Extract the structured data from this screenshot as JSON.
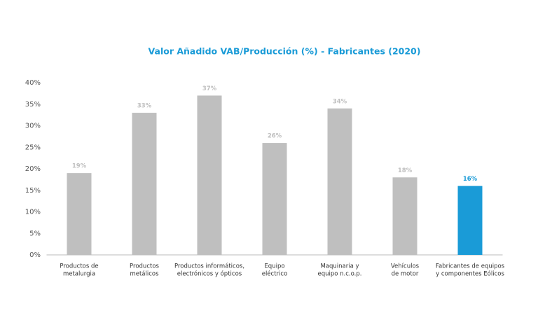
{
  "chart_data": {
    "type": "bar",
    "title": "Valor Añadido VAB/Producción (%)  -  Fabricantes (2020)",
    "categories": [
      [
        "Productos de",
        "metalurgia"
      ],
      [
        "Productos",
        "metálicos"
      ],
      [
        "Productos informáticos,",
        "electrónicos y ópticos"
      ],
      [
        "Equipo",
        "eléctrico"
      ],
      [
        "Maquinaria y",
        "equipo n.c.o.p."
      ],
      [
        "Vehículos",
        "de motor"
      ],
      [
        "Fabricantes de equipos",
        "y componentes Eólicos"
      ]
    ],
    "values": [
      19,
      33,
      37,
      26,
      34,
      18,
      16
    ],
    "value_labels": [
      "19%",
      "33%",
      "37%",
      "26%",
      "34%",
      "18%",
      "16%"
    ],
    "colors": [
      "#bfbfbf",
      "#bfbfbf",
      "#bfbfbf",
      "#bfbfbf",
      "#bfbfbf",
      "#bfbfbf",
      "#1a9bd7"
    ],
    "label_colors": [
      "#bfbfbf",
      "#bfbfbf",
      "#bfbfbf",
      "#bfbfbf",
      "#bfbfbf",
      "#bfbfbf",
      "#1a9bd7"
    ],
    "ylim": [
      0,
      40
    ],
    "yticks": [
      {
        "value": 0,
        "label": "0%"
      },
      {
        "value": 5,
        "label": "5%"
      },
      {
        "value": 10,
        "label": "10%"
      },
      {
        "value": 15,
        "label": "15%"
      },
      {
        "value": 20,
        "label": "20%"
      },
      {
        "value": 25,
        "label": "25%"
      },
      {
        "value": 30,
        "label": "30%"
      },
      {
        "value": 35,
        "label": "35%"
      },
      {
        "value": 40,
        "label": "40%"
      }
    ],
    "grid": false
  }
}
